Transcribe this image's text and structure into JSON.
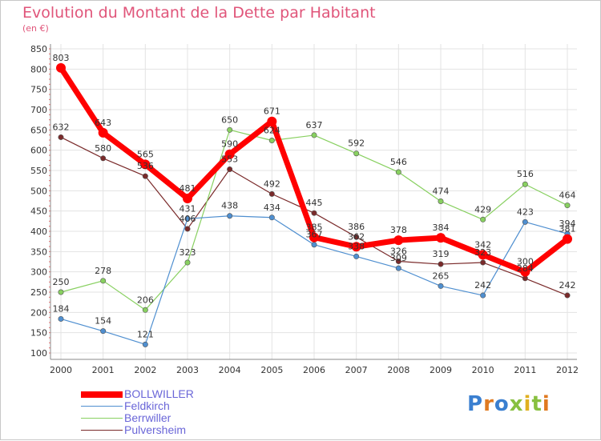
{
  "chart_data": {
    "type": "line",
    "title": "Evolution du Montant de la Dette par Habitant",
    "subtitle": "(en €)",
    "x": [
      "2000",
      "2001",
      "2002",
      "2003",
      "2004",
      "2005",
      "2006",
      "2007",
      "2008",
      "2009",
      "2010",
      "2011",
      "2012"
    ],
    "ylim": [
      100,
      850
    ],
    "yticks": [
      100,
      150,
      200,
      250,
      300,
      350,
      400,
      450,
      500,
      550,
      600,
      650,
      700,
      750,
      800,
      850
    ],
    "grid": true,
    "legend_position": "bottom-left",
    "series": [
      {
        "name": "BOLLWILLER",
        "color": "#ff0000",
        "values": [
          803,
          643,
          565,
          481,
          590,
          671,
          385,
          362,
          378,
          384,
          342,
          300,
          381
        ]
      },
      {
        "name": "Feldkirch",
        "color": "#4f8fd0",
        "values": [
          184,
          154,
          121,
          431,
          438,
          434,
          367,
          338,
          309,
          265,
          242,
          423,
          394
        ]
      },
      {
        "name": "Berrwiller",
        "color": "#88d060",
        "values": [
          250,
          278,
          206,
          323,
          650,
          624,
          637,
          592,
          546,
          474,
          429,
          516,
          464
        ]
      },
      {
        "name": "Pulversheim",
        "color": "#7a2a2a",
        "values": [
          632,
          580,
          536,
          406,
          553,
          492,
          445,
          386,
          326,
          319,
          323,
          284,
          242
        ]
      }
    ]
  },
  "logo": {
    "text": "Proxiti",
    "letter_colors": [
      "#3a7fd0",
      "#e07a20",
      "#3a7fd0",
      "#88c040",
      "#e0b020",
      "#88c040",
      "#e07a20"
    ]
  }
}
